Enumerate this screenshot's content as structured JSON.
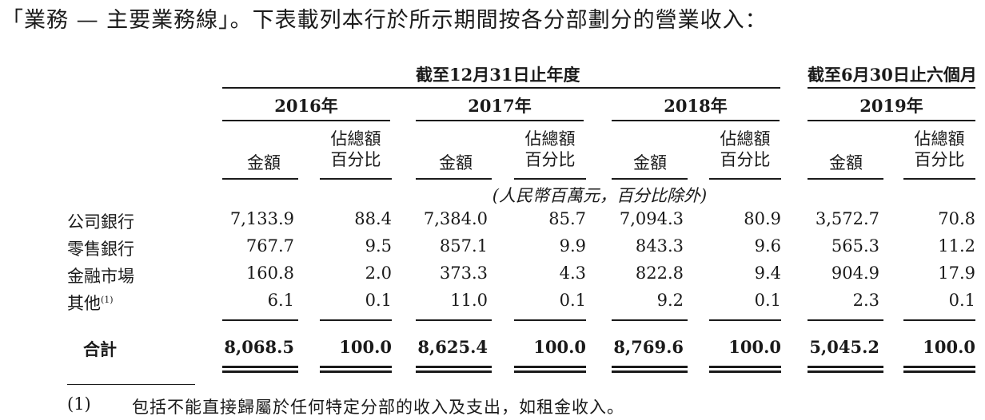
{
  "intro": "「業務 — 主要業務線」。下表載列本行於所示期間按各分部劃分的營業收入：",
  "header": {
    "period_full_year": "截至12月31日止年度",
    "period_half_year": "截至6月30日止六個月",
    "years": [
      "2016年",
      "2017年",
      "2018年",
      "2019年"
    ],
    "col_amount": "金額",
    "col_pct_line1": "佔總額",
    "col_pct_line2": "百分比",
    "unit_note": "(人民幣百萬元，百分比除外)"
  },
  "rows": [
    {
      "label": "公司銀行",
      "note": "",
      "values": [
        "7,133.9",
        "88.4",
        "7,384.0",
        "85.7",
        "7,094.3",
        "80.9",
        "3,572.7",
        "70.8"
      ]
    },
    {
      "label": "零售銀行",
      "note": "",
      "values": [
        "767.7",
        "9.5",
        "857.1",
        "9.9",
        "843.3",
        "9.6",
        "565.3",
        "11.2"
      ]
    },
    {
      "label": "金融市場",
      "note": "",
      "values": [
        "160.8",
        "2.0",
        "373.3",
        "4.3",
        "822.8",
        "9.4",
        "904.9",
        "17.9"
      ]
    },
    {
      "label": "其他",
      "note": "(1)",
      "values": [
        "6.1",
        "0.1",
        "11.0",
        "0.1",
        "9.2",
        "0.1",
        "2.3",
        "0.1"
      ]
    }
  ],
  "total": {
    "label": "合計",
    "values": [
      "8,068.5",
      "100.0",
      "8,625.4",
      "100.0",
      "8,769.6",
      "100.0",
      "5,045.2",
      "100.0"
    ]
  },
  "footnote": {
    "marker": "(1)",
    "text": "包括不能直接歸屬於任何特定分部的收入及支出，如租金收入。"
  }
}
